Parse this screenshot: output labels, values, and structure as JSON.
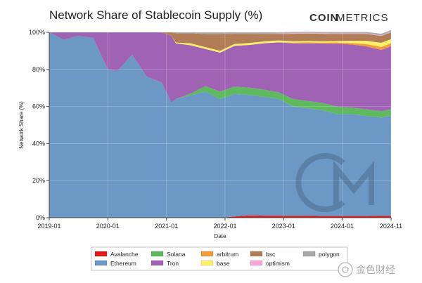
{
  "chart_data": {
    "type": "area",
    "stacked": true,
    "normalized": true,
    "title": "Network Share of Stablecoin Supply (%)",
    "brand": {
      "bold": "COIN",
      "light": "METRICS"
    },
    "xlabel": "Date",
    "ylabel": "Network Share (%)",
    "x_ticks": [
      "2019-01",
      "2020-01",
      "2021-01",
      "2022-01",
      "2023-01",
      "2024-01",
      "2024-11"
    ],
    "y_ticks": [
      "0%",
      "20%",
      "40%",
      "60%",
      "80%",
      "100%"
    ],
    "ylim": [
      0,
      100
    ],
    "x": [
      "2019-01",
      "2019-04",
      "2019-07",
      "2019-10",
      "2020-01",
      "2020-03",
      "2020-06",
      "2020-09",
      "2020-12",
      "2021-02",
      "2021-03",
      "2021-06",
      "2021-09",
      "2021-12",
      "2022-03",
      "2022-06",
      "2022-09",
      "2022-12",
      "2023-03",
      "2023-06",
      "2023-09",
      "2023-12",
      "2024-03",
      "2024-06",
      "2024-09",
      "2024-11"
    ],
    "series": [
      {
        "name": "Avalanche",
        "color": "#e31a1c",
        "values": [
          0,
          0,
          0,
          0,
          0,
          0,
          0,
          0,
          0,
          0,
          0,
          0,
          0,
          0,
          0.7,
          1.2,
          1.1,
          1.1,
          1.0,
          1.0,
          0.9,
          0.9,
          0.9,
          0.9,
          1.0,
          1.0
        ]
      },
      {
        "name": "Ethereum",
        "color": "#6b98c4",
        "values": [
          100,
          96,
          98,
          97,
          80,
          79,
          88,
          76,
          73,
          62,
          64,
          66,
          68,
          64,
          66,
          65,
          64,
          63,
          59,
          58,
          57,
          55,
          55,
          54,
          53,
          54
        ]
      },
      {
        "name": "Solana",
        "color": "#5fb95f",
        "values": [
          0,
          0,
          0,
          0,
          0,
          0,
          0,
          0,
          0,
          0,
          0,
          1.0,
          3.0,
          4.0,
          4.0,
          4.0,
          4.0,
          3.5,
          4.0,
          4.0,
          4.0,
          4.0,
          3.5,
          3.5,
          3.5,
          3.5
        ]
      },
      {
        "name": "Tron",
        "color": "#9f62b4",
        "values": [
          0,
          4,
          2,
          3,
          20,
          21,
          12,
          24,
          27,
          36,
          30,
          26,
          20,
          21,
          22,
          23,
          25,
          27,
          30,
          31,
          32,
          34,
          34,
          34,
          33,
          34
        ]
      },
      {
        "name": "arbitrum",
        "color": "#f59b3a",
        "values": [
          0,
          0,
          0,
          0,
          0,
          0,
          0,
          0,
          0,
          0,
          0,
          0,
          0,
          0,
          0,
          0,
          0,
          0,
          0.4,
          0.5,
          0.5,
          0.6,
          0.8,
          1.2,
          1.6,
          1.6
        ]
      },
      {
        "name": "base",
        "color": "#fff06a",
        "values": [
          0,
          0,
          0,
          0,
          0,
          0,
          0,
          0,
          0,
          0,
          0.5,
          1.0,
          1.0,
          1.0,
          1.0,
          1.0,
          1.0,
          1.0,
          0.8,
          0.8,
          0.8,
          0.8,
          1.2,
          1.8,
          2.2,
          2.2
        ]
      },
      {
        "name": "bsc",
        "color": "#b07d56",
        "values": [
          0,
          0,
          0,
          0,
          0,
          0,
          0,
          0,
          0,
          2.0,
          5.0,
          5.5,
          7.0,
          9.0,
          5.5,
          5.0,
          4.0,
          3.5,
          4.0,
          4.0,
          4.0,
          3.8,
          3.7,
          3.7,
          3.7,
          3.7
        ]
      },
      {
        "name": "optimism",
        "color": "#f7a6d6",
        "values": [
          0,
          0,
          0,
          0,
          0,
          0,
          0,
          0,
          0,
          0,
          0,
          0,
          0,
          0,
          0,
          0,
          0,
          0.2,
          0.3,
          0.3,
          0.3,
          0.3,
          0.3,
          0.3,
          0.3,
          0.3
        ]
      },
      {
        "name": "polygon",
        "color": "#a8a8a8",
        "values": [
          0,
          0,
          0,
          0,
          0,
          0,
          0,
          0,
          0,
          0,
          0.5,
          0.5,
          1.0,
          1.0,
          0.8,
          0.8,
          0.9,
          0.7,
          0.7,
          0.7,
          0.7,
          0.8,
          0.8,
          0.8,
          0.9,
          0.9
        ]
      }
    ],
    "legend": {
      "placement": "bottom",
      "rows": [
        [
          "Avalanche",
          "Solana",
          "arbitrum",
          "bsc",
          "polygon"
        ],
        [
          "Ethereum",
          "Tron",
          "base",
          "optimism"
        ]
      ]
    },
    "grid": true,
    "watermark": "CM",
    "corner_watermark": "金色财经"
  }
}
